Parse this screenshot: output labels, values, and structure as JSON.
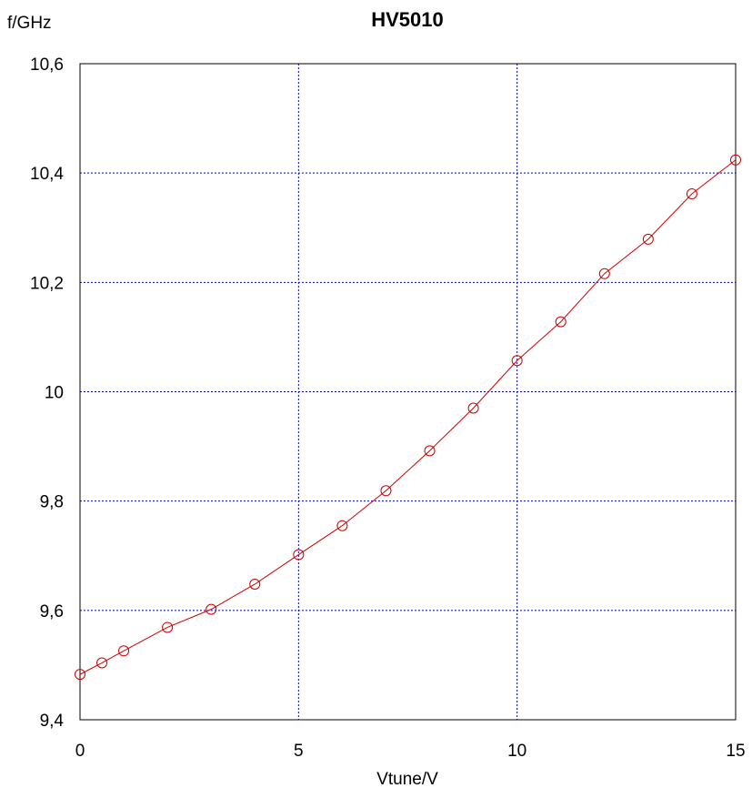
{
  "chart_data": {
    "type": "line",
    "title": "HV5010",
    "xlabel": "Vtune/V",
    "ylabel": "f/GHz",
    "xlim": [
      0,
      15
    ],
    "ylim": [
      9.4,
      10.6
    ],
    "x_ticks": [
      0,
      5,
      10,
      15
    ],
    "x_tick_labels": [
      "0",
      "5",
      "10",
      "15"
    ],
    "y_ticks": [
      9.4,
      9.6,
      9.8,
      10.0,
      10.2,
      10.4,
      10.6
    ],
    "y_tick_labels": [
      "9,4",
      "9,6",
      "9,8",
      "10",
      "10,2",
      "10,4",
      "10,6"
    ],
    "grid": true,
    "grid_color": "#0000c0",
    "series": [
      {
        "color": "#cc0000",
        "marker": "circle",
        "x": [
          0,
          0.5,
          1,
          2,
          3,
          4,
          5,
          6,
          7,
          8,
          9,
          10,
          11,
          12,
          13,
          14,
          15
        ],
        "y": [
          9.483,
          9.504,
          9.526,
          9.569,
          9.602,
          9.648,
          9.702,
          9.755,
          9.819,
          9.892,
          9.97,
          10.057,
          10.128,
          10.216,
          10.279,
          10.362,
          10.424
        ]
      }
    ]
  }
}
